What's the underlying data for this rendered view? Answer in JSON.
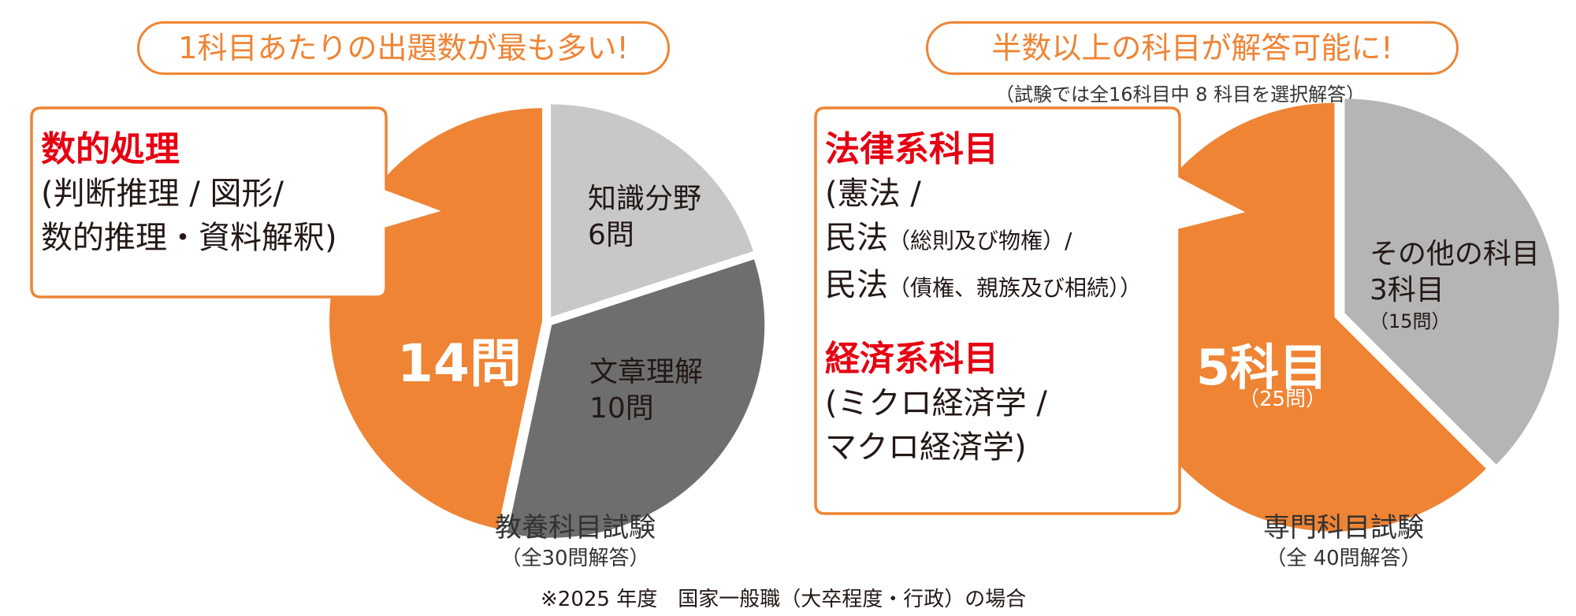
{
  "left": {
    "headline": "1科目あたりの出題数が最も多い!",
    "callout_title": "数的処理",
    "callout_lines": [
      "(判断推理 / 図形/",
      "数的推理・資料解釈)"
    ],
    "caption": "教養科目試験",
    "caption_sub": "（全30問解答）"
  },
  "right": {
    "headline": "半数以上の科目が解答可能に!",
    "subnote": "（試験では全16科目中 8 科目を選択解答）",
    "callout_title_1": "法律系科目",
    "law_line1": "(憲法 /",
    "law_line2_main": "民法",
    "law_line2_small": "（総則及び物権）/",
    "law_line3_main": "民法",
    "law_line3_small": "（債権、親族及び相続））",
    "callout_title_2": "経済系科目",
    "econ_lines": [
      "(ミクロ経済学 /",
      "マクロ経済学)"
    ],
    "caption": "専門科目試験",
    "caption_sub": "（全 40問解答）"
  },
  "footnote": "※2025 年度　国家一般職（大卒程度・行政）の場合",
  "colors": {
    "orange": "#ef8434",
    "light_gray": "#c8c8c8",
    "dark_gray": "#6e6e6e",
    "mid_gray": "#b5b5b5",
    "red": "#e60012"
  },
  "chart_data": [
    {
      "type": "pie",
      "slices": [
        {
          "label": "知識分野",
          "value": 6,
          "value_text": "6問",
          "color": "#c8c8c8"
        },
        {
          "label": "文章理解",
          "value": 10,
          "value_text": "10問",
          "color": "#6e6e6e"
        },
        {
          "label": "数的処理",
          "value": 14,
          "value_text": "14問",
          "color": "#ef8434"
        }
      ],
      "total": 30
    },
    {
      "type": "pie",
      "slices": [
        {
          "label": "その他の科目",
          "value": 3,
          "value_text": "3科目",
          "sub_text": "（15問）",
          "color": "#b5b5b5"
        },
        {
          "label": "法律系科目・経済系科目",
          "value": 5,
          "value_text": "5科目",
          "sub_text": "（25問）",
          "color": "#ef8434"
        }
      ],
      "total": 8
    }
  ]
}
